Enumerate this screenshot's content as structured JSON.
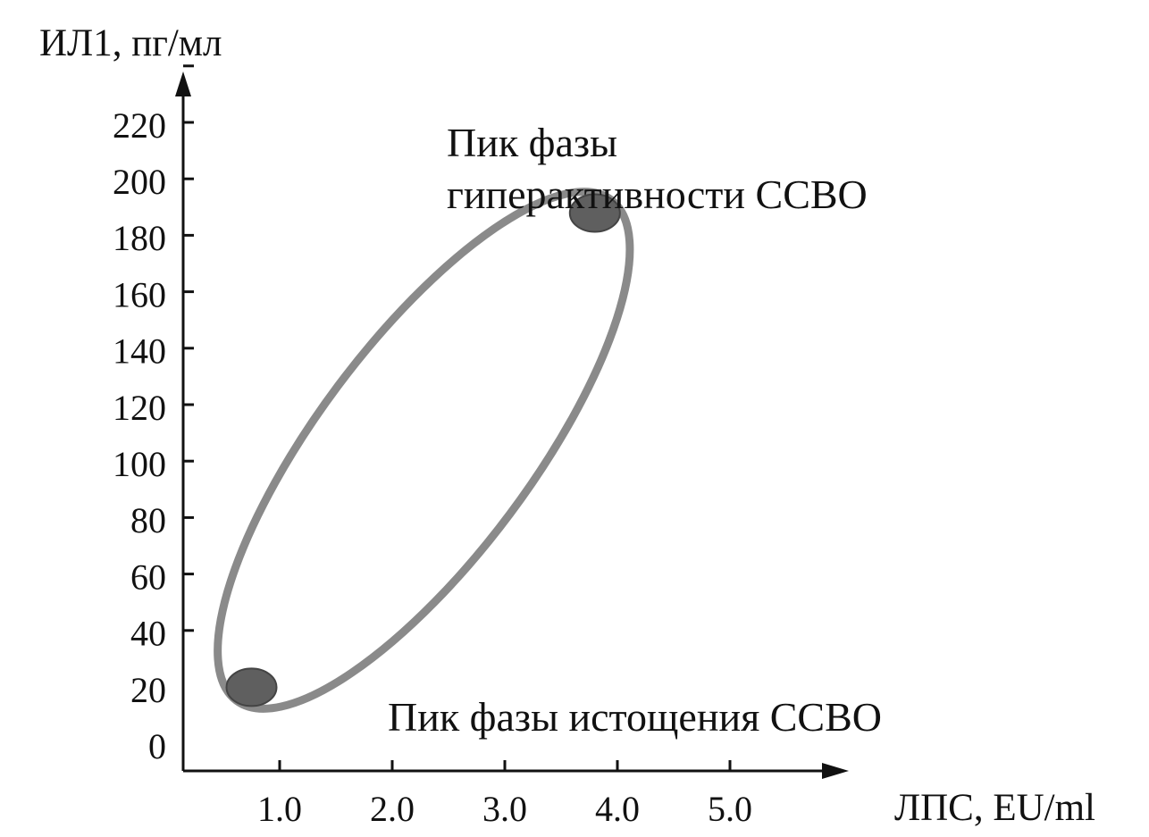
{
  "chart_data": {
    "type": "scatter",
    "ylabel": "ИЛ1, пг/мл",
    "xlabel": "ЛПС, EU/ml",
    "x_ticks": [
      1.0,
      2.0,
      3.0,
      4.0,
      5.0
    ],
    "x_tick_labels": [
      "1.0",
      "2.0",
      "3.0",
      "4.0",
      "5.0"
    ],
    "y_ticks": [
      0,
      20,
      40,
      60,
      80,
      100,
      120,
      140,
      160,
      180,
      200,
      220
    ],
    "y_tick_labels": [
      "0",
      "20",
      "40",
      "60",
      "80",
      "100",
      "120",
      "140",
      "160",
      "180",
      "200",
      "220"
    ],
    "xlim": [
      0.15,
      6.0
    ],
    "ylim": [
      -10,
      230
    ],
    "grid": false,
    "points": [
      {
        "x": 0.75,
        "y": 10,
        "label": "Пик фазы истощения ССВО"
      },
      {
        "x": 3.8,
        "y": 178,
        "label_lines": [
          "Пик фазы",
          "гиперактивности ССВО"
        ]
      }
    ],
    "envelope": {
      "shape": "ellipse",
      "center": {
        "x": 2.28,
        "y": 94
      },
      "rotation_deg": -53.2,
      "color": "#8a8a8a"
    },
    "colors": {
      "point": "#5f5f5f",
      "point_stroke": "#444444",
      "axis": "#111111",
      "text": "#111111"
    }
  }
}
